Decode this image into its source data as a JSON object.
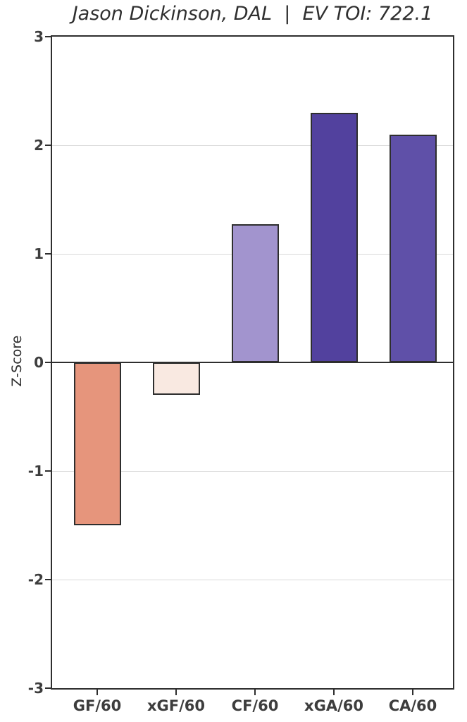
{
  "chart_data": {
    "type": "bar",
    "title": "Jason Dickinson, DAL  |  EV TOI: 722.1",
    "player": "Jason Dickinson",
    "team": "DAL",
    "ev_toi_label": "EV TOI",
    "ev_toi": 722.1,
    "xlabel": "",
    "ylabel": "Z-Score",
    "categories": [
      "GF/60",
      "xGF/60",
      "CF/60",
      "xGA/60",
      "CA/60"
    ],
    "values": [
      -1.5,
      -0.3,
      1.27,
      2.3,
      2.1
    ],
    "bar_colors": [
      "#e6957c",
      "#f9e9e1",
      "#a294ce",
      "#52419e",
      "#5f50a8"
    ],
    "bar_edge_color": "#2e2e2e",
    "ylim": [
      -3,
      3
    ],
    "yticks": [
      3,
      2,
      1,
      0,
      -1,
      -2,
      -3
    ],
    "grid": true,
    "legend_position": "none",
    "colors": {
      "grid": "#d9d9d9",
      "axis": "#2e2e2e",
      "tick_text": "#3d3d3d",
      "title_text": "#2f2f2f",
      "background": "#ffffff"
    }
  }
}
